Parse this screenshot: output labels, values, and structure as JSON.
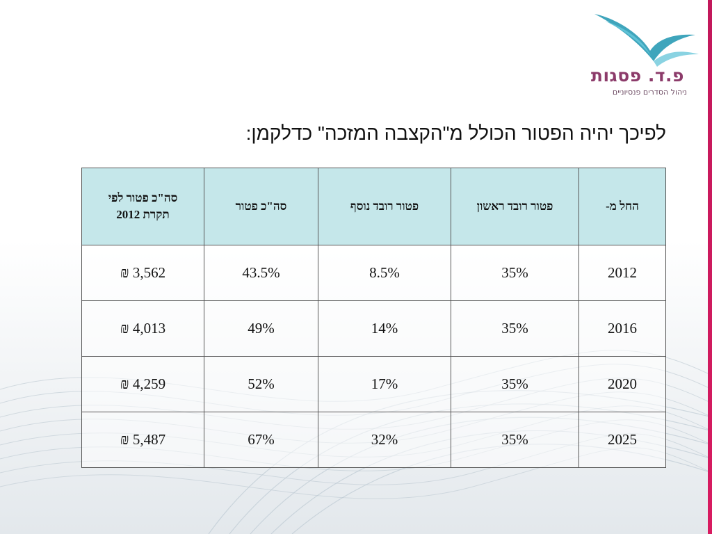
{
  "logo": {
    "title": "פ.ד. פסגות",
    "subtitle": "ניהול הסדרים פנסיוניים",
    "accent": "#8c3b6a",
    "bird_color": "#2a9bb5"
  },
  "heading": "לפיכך יהיה הפטור הכולל מ\"הקצבה המזכה\" כדלקמן:",
  "table": {
    "headers": {
      "year": "החל מ-",
      "first": "פטור רובד ראשון",
      "extra": "פטור רובד נוסף",
      "total": "סה\"כ פטור",
      "by2012_line1": "סה\"כ פטור לפי",
      "by2012_line2": "תקרת 2012"
    },
    "rows": [
      {
        "year": "2012",
        "first": "35%",
        "extra": "8.5%",
        "total": "43.5%",
        "by2012": "3,562 ₪"
      },
      {
        "year": "2016",
        "first": "35%",
        "extra": "14%",
        "total": "49%",
        "by2012": "4,013 ₪"
      },
      {
        "year": "2020",
        "first": "35%",
        "extra": "17%",
        "total": "52%",
        "by2012": "4,259 ₪"
      },
      {
        "year": "2025",
        "first": "35%",
        "extra": "32%",
        "total": "67%",
        "by2012": "5,487 ₪"
      }
    ],
    "header_color": "#c5e7ea"
  },
  "accent_bar_color": "#c2185b"
}
